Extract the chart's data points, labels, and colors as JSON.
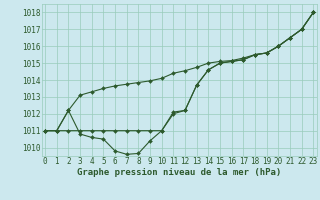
{
  "title": "Graphe pression niveau de la mer (hPa)",
  "bg_color": "#cce8ee",
  "grid_color": "#99ccbb",
  "line_color": "#2d5a2d",
  "series": {
    "line_flat": [
      1011,
      1011,
      1011,
      1011,
      1011,
      1011,
      1011,
      1011,
      1011,
      1011,
      1011,
      1012,
      1012.2,
      1013.7,
      1014.6,
      1015,
      1015.1,
      1015.2,
      1015.5,
      1015.6,
      1016,
      1016.5,
      1017,
      1018
    ],
    "line_dip": [
      1011,
      1011,
      1012.2,
      1010.8,
      1010.6,
      1010.5,
      1009.8,
      1009.6,
      1009.65,
      1010.4,
      1011.0,
      1012.1,
      1012.2,
      1013.7,
      1014.6,
      1015,
      1015.1,
      1015.2,
      1015.5,
      1015.6,
      1016,
      1016.5,
      1017,
      1018
    ],
    "line_rise": [
      1011,
      1011,
      1012.2,
      1013.1,
      1013.3,
      1013.5,
      1013.65,
      1013.75,
      1013.85,
      1013.95,
      1014.1,
      1014.4,
      1014.55,
      1014.75,
      1015.0,
      1015.1,
      1015.15,
      1015.3,
      1015.5,
      1015.6,
      1016,
      1016.5,
      1017,
      1018
    ]
  },
  "xlim_min": -0.3,
  "xlim_max": 23.3,
  "ylim_min": 1009.5,
  "ylim_max": 1018.5,
  "yticks": [
    1010,
    1011,
    1012,
    1013,
    1014,
    1015,
    1016,
    1017,
    1018
  ],
  "xticks": [
    0,
    1,
    2,
    3,
    4,
    5,
    6,
    7,
    8,
    9,
    10,
    11,
    12,
    13,
    14,
    15,
    16,
    17,
    18,
    19,
    20,
    21,
    22,
    23
  ],
  "tick_fontsize": 5.5,
  "title_fontsize": 6.5,
  "marker": "D",
  "markersize": 2.0,
  "linewidth": 0.8
}
